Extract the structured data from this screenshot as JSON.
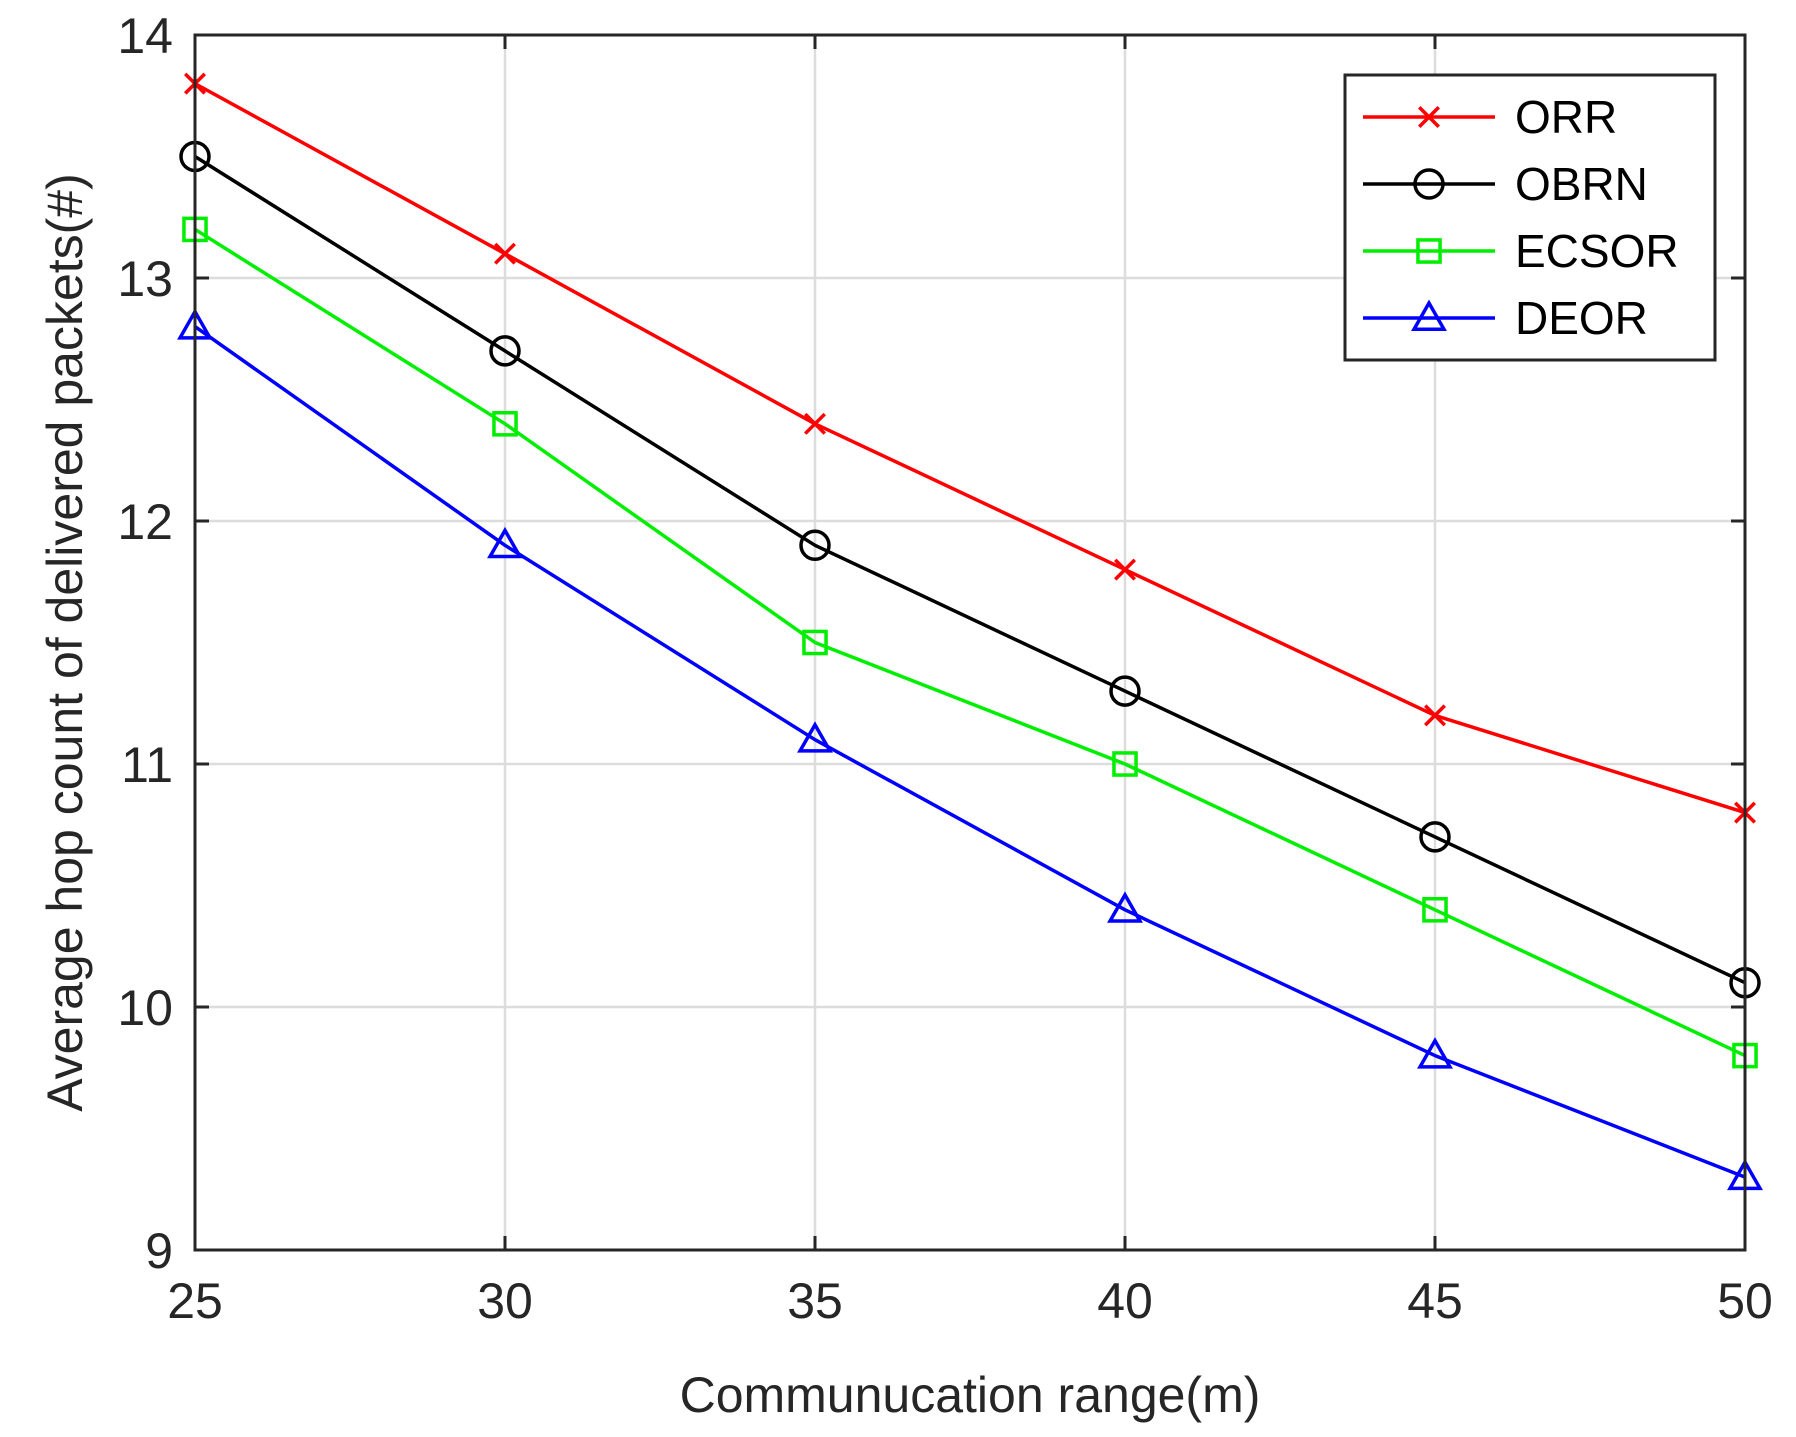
{
  "chart_data": {
    "type": "line",
    "title": "",
    "xlabel": "Communucation range(m)",
    "ylabel": "Average hop count of delivered packets(#)",
    "x": [
      25,
      30,
      35,
      40,
      45,
      50
    ],
    "xticks": [
      "25",
      "30",
      "35",
      "40",
      "45",
      "50"
    ],
    "yticks": [
      "9",
      "10",
      "11",
      "12",
      "13",
      "14"
    ],
    "xlim": [
      25,
      50
    ],
    "ylim": [
      9,
      14
    ],
    "grid": true,
    "legend_position": "top-right",
    "series": [
      {
        "name": "ORR",
        "color": "#ff0000",
        "marker": "x",
        "values": [
          13.8,
          13.1,
          12.4,
          11.8,
          11.2,
          10.8
        ]
      },
      {
        "name": "OBRN",
        "color": "#000000",
        "marker": "circle",
        "values": [
          13.5,
          12.7,
          11.9,
          11.3,
          10.7,
          10.1
        ]
      },
      {
        "name": "ECSOR",
        "color": "#00ee00",
        "marker": "square",
        "values": [
          13.2,
          12.4,
          11.5,
          11.0,
          10.4,
          9.8
        ]
      },
      {
        "name": "DEOR",
        "color": "#0000ff",
        "marker": "triangle",
        "values": [
          12.8,
          11.9,
          11.1,
          10.4,
          9.8,
          9.3
        ]
      }
    ]
  }
}
